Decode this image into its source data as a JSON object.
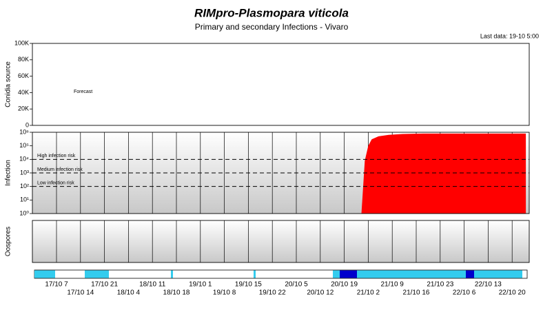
{
  "title": "RIMpro-Plasmopara viticola",
  "subtitle": "Primary and secondary Infections - Vivaro",
  "last_data": "Last data: 19-10 5:00",
  "chart_data": [
    {
      "type": "area",
      "y_label": "Conidia source",
      "annotation": "Forecast",
      "ylim": [
        0,
        100000
      ],
      "yticks": [
        0,
        {
          "value": 20000,
          "label": "20K"
        },
        {
          "value": 40000,
          "label": "40K"
        },
        {
          "value": 60000,
          "label": "60K"
        },
        {
          "value": 80000,
          "label": "80K"
        },
        {
          "value": 100000,
          "label": "100K"
        }
      ]
    },
    {
      "type": "area",
      "y_label": "Infection",
      "log_scale": true,
      "ylim": [
        1,
        1000000
      ],
      "yticks": [
        {
          "value": 1,
          "label": "10⁰"
        },
        {
          "value": 10,
          "label": "10¹"
        },
        {
          "value": 100,
          "label": "10²"
        },
        {
          "value": 1000,
          "label": "10³"
        },
        {
          "value": 10000,
          "label": "10⁴"
        },
        {
          "value": 100000,
          "label": "10⁵"
        },
        {
          "value": 1000000,
          "label": "10⁶"
        }
      ],
      "thresholds": [
        {
          "label": "High infection risk",
          "value": 10000
        },
        {
          "label": "Medium infection risk",
          "value": 1000
        },
        {
          "label": "Low infection risk",
          "value": 100
        }
      ],
      "series": [
        {
          "color": "#ff0000",
          "x": [
            "21/10 0",
            "21/10 1",
            "21/10 2",
            "21/10 3",
            "21/10 5",
            "21/10 8",
            "21/10 12",
            "21/10 18",
            "22/10 6",
            "22/10 18",
            "23/10 0"
          ],
          "values": [
            1,
            8000,
            100000,
            300000,
            500000,
            650000,
            750000,
            800000,
            800000,
            800000,
            800000
          ]
        }
      ]
    },
    {
      "type": "area",
      "y_label": "Oospores",
      "categories": [
        "17/10 7",
        "17/10 14",
        "17/10 21",
        "18/10 4",
        "18/10 11",
        "18/10 18",
        "19/10 1",
        "19/10 8",
        "19/10 15",
        "19/10 22",
        "20/10 5",
        "20/10 12",
        "20/10 19",
        "21/10 2",
        "21/10 9",
        "21/10 16",
        "21/10 23",
        "22/10 6",
        "22/10 13",
        "22/10 20"
      ]
    }
  ]
}
